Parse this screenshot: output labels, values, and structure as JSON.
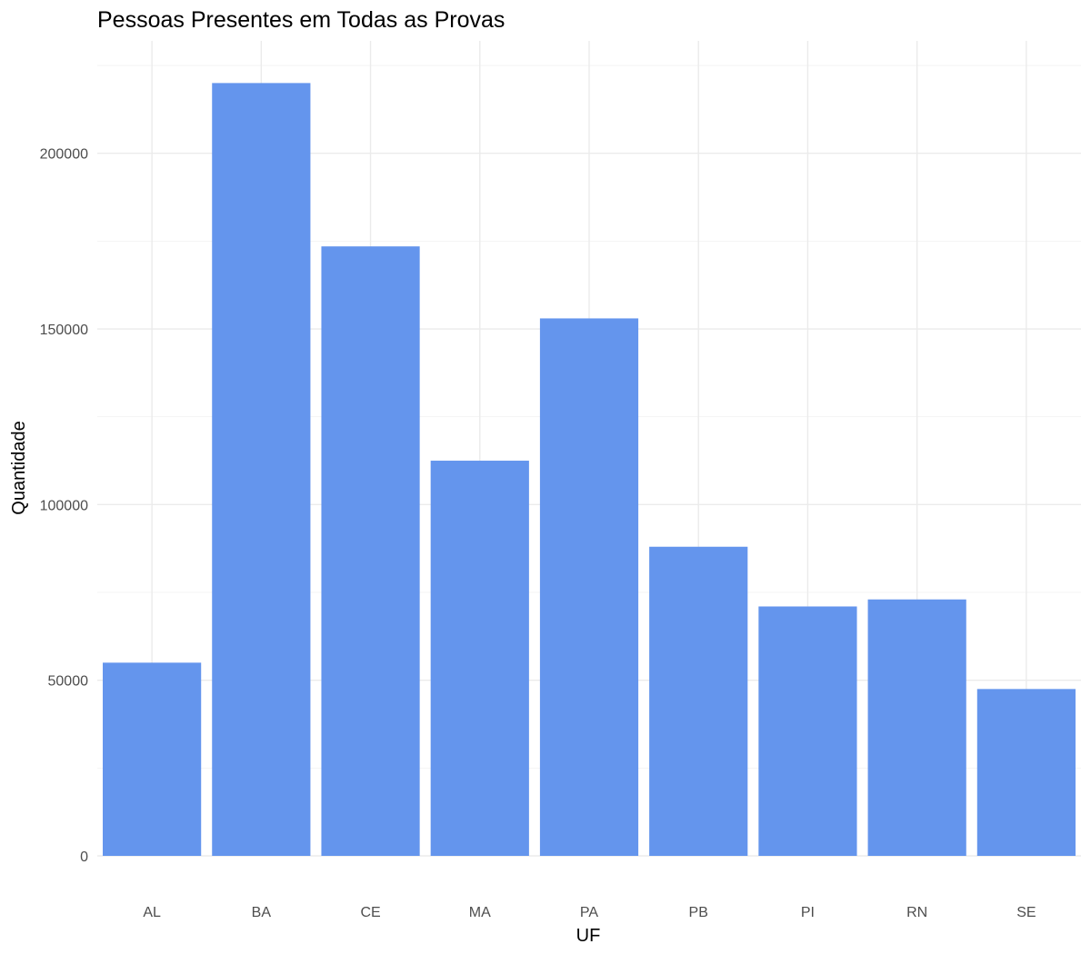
{
  "chart_data": {
    "type": "bar",
    "title": "Pessoas Presentes em Todas as Provas",
    "xlabel": "UF",
    "ylabel": "Quantidade",
    "categories": [
      "AL",
      "BA",
      "CE",
      "MA",
      "PA",
      "PB",
      "PI",
      "RN",
      "SE"
    ],
    "values": [
      55000,
      220000,
      173500,
      112500,
      153000,
      88000,
      71000,
      73000,
      47500
    ],
    "ylim": [
      0,
      225000
    ],
    "yticks": [
      0,
      50000,
      100000,
      150000,
      200000
    ],
    "ytick_labels": [
      "0",
      "50000",
      "100000",
      "150000",
      "200000"
    ],
    "bar_color": "#6495ED",
    "grid": true,
    "legend": "none"
  }
}
